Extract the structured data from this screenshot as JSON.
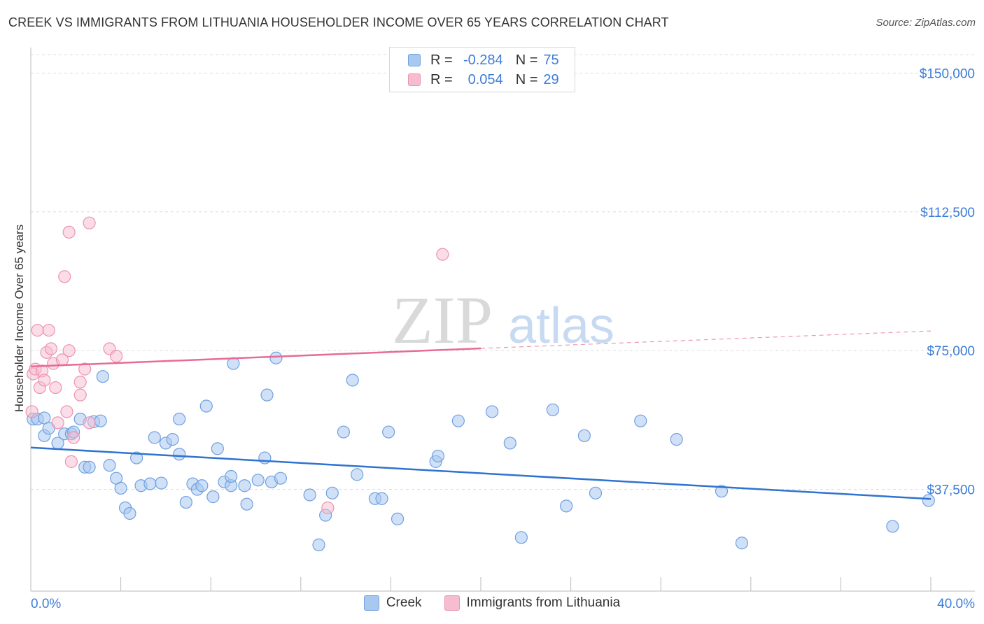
{
  "title": "CREEK VS IMMIGRANTS FROM LITHUANIA HOUSEHOLDER INCOME OVER 65 YEARS CORRELATION CHART",
  "source": "Source: ZipAtlas.com",
  "watermark": {
    "zip": "ZIP",
    "atlas": "atlas"
  },
  "legend": {
    "r_label": "R =",
    "n_label": "N =",
    "creek": {
      "r": "-0.284",
      "n": "75"
    },
    "lith": {
      "r": "0.054",
      "n": "29"
    }
  },
  "bottom_legend": {
    "creek": "Creek",
    "lith": "Immigrants from Lithuania"
  },
  "colors": {
    "creek_fill": "#a9c8f0",
    "creek_stroke": "#6fa0e0",
    "creek_line": "#2f73d0",
    "lith_fill": "#f6bcd0",
    "lith_stroke": "#ec93b1",
    "lith_line": "#e86b96",
    "axis_text": "#3d7dd8",
    "grid": "#dddddd"
  },
  "chart_data": {
    "type": "scatter",
    "title": "CREEK VS IMMIGRANTS FROM LITHUANIA HOUSEHOLDER INCOME OVER 65 YEARS CORRELATION CHART",
    "xlabel": "",
    "ylabel": "Householder Income Over 65 years",
    "xlim": [
      0,
      40
    ],
    "ylim": [
      10000,
      155000
    ],
    "x_tick_labels": [
      "0.0%",
      "40.0%"
    ],
    "y_ticks": [
      37500,
      75000,
      112500,
      150000
    ],
    "y_tick_labels": [
      "$37,500",
      "$75,000",
      "$112,500",
      "$150,000"
    ],
    "grid": true,
    "legend_position": "top-center",
    "series": [
      {
        "name": "Creek",
        "r": -0.284,
        "n": 75,
        "trend": [
          [
            0,
            48800
          ],
          [
            40,
            34900
          ]
        ],
        "points": [
          [
            0.1,
            56500
          ],
          [
            0.3,
            56500
          ],
          [
            0.6,
            52000
          ],
          [
            0.6,
            56800
          ],
          [
            0.8,
            54000
          ],
          [
            1.2,
            50000
          ],
          [
            1.5,
            52500
          ],
          [
            1.8,
            52500
          ],
          [
            1.9,
            53000
          ],
          [
            2.2,
            56500
          ],
          [
            2.4,
            43500
          ],
          [
            2.6,
            43500
          ],
          [
            2.8,
            55800
          ],
          [
            3.1,
            56000
          ],
          [
            3.2,
            68000
          ],
          [
            3.5,
            44000
          ],
          [
            3.8,
            40500
          ],
          [
            4.0,
            37800
          ],
          [
            4.2,
            32500
          ],
          [
            4.4,
            31000
          ],
          [
            4.7,
            46000
          ],
          [
            4.9,
            38500
          ],
          [
            5.3,
            39000
          ],
          [
            5.5,
            51500
          ],
          [
            5.8,
            39200
          ],
          [
            6.0,
            50000
          ],
          [
            6.3,
            51000
          ],
          [
            6.6,
            56500
          ],
          [
            6.6,
            47000
          ],
          [
            6.9,
            34000
          ],
          [
            7.2,
            39000
          ],
          [
            7.4,
            37500
          ],
          [
            7.6,
            38500
          ],
          [
            7.8,
            60000
          ],
          [
            8.1,
            35500
          ],
          [
            8.3,
            48500
          ],
          [
            8.6,
            39500
          ],
          [
            8.9,
            38500
          ],
          [
            8.9,
            41000
          ],
          [
            9.0,
            71500
          ],
          [
            9.5,
            38500
          ],
          [
            9.6,
            33500
          ],
          [
            10.1,
            40000
          ],
          [
            10.4,
            46000
          ],
          [
            10.5,
            63000
          ],
          [
            10.7,
            39500
          ],
          [
            10.9,
            73000
          ],
          [
            11.1,
            40500
          ],
          [
            12.4,
            36000
          ],
          [
            12.8,
            22500
          ],
          [
            13.1,
            30500
          ],
          [
            13.4,
            36500
          ],
          [
            13.9,
            53000
          ],
          [
            14.3,
            67000
          ],
          [
            14.5,
            41500
          ],
          [
            15.3,
            35000
          ],
          [
            15.6,
            35000
          ],
          [
            15.9,
            53000
          ],
          [
            16.3,
            29500
          ],
          [
            18.0,
            45000
          ],
          [
            18.1,
            46500
          ],
          [
            19.0,
            56000
          ],
          [
            20.5,
            58500
          ],
          [
            21.3,
            50000
          ],
          [
            21.8,
            24500
          ],
          [
            23.2,
            59000
          ],
          [
            23.8,
            33000
          ],
          [
            24.6,
            52000
          ],
          [
            25.1,
            36500
          ],
          [
            27.1,
            56000
          ],
          [
            28.7,
            51000
          ],
          [
            30.7,
            37000
          ],
          [
            31.6,
            23000
          ],
          [
            38.3,
            27500
          ],
          [
            39.9,
            34500
          ]
        ]
      },
      {
        "name": "Immigrants from Lithuania",
        "r": 0.054,
        "n": 29,
        "trend": [
          [
            0,
            70700
          ],
          [
            20.0,
            75600
          ]
        ],
        "trend_extension": [
          [
            20.0,
            75600
          ],
          [
            40.0,
            80300
          ]
        ],
        "points": [
          [
            0.1,
            68700
          ],
          [
            0.2,
            70000
          ],
          [
            0.3,
            80500
          ],
          [
            0.4,
            65000
          ],
          [
            0.5,
            69500
          ],
          [
            0.6,
            67000
          ],
          [
            0.7,
            74500
          ],
          [
            0.8,
            80500
          ],
          [
            0.9,
            75500
          ],
          [
            1.0,
            71500
          ],
          [
            1.1,
            65000
          ],
          [
            1.2,
            55500
          ],
          [
            1.4,
            72500
          ],
          [
            1.5,
            95000
          ],
          [
            1.6,
            58500
          ],
          [
            1.7,
            75000
          ],
          [
            1.7,
            107000
          ],
          [
            1.8,
            45000
          ],
          [
            1.9,
            51500
          ],
          [
            2.2,
            66500
          ],
          [
            2.2,
            63000
          ],
          [
            2.4,
            70000
          ],
          [
            2.6,
            109500
          ],
          [
            2.6,
            55500
          ],
          [
            3.5,
            75500
          ],
          [
            3.8,
            73500
          ],
          [
            13.2,
            32500
          ],
          [
            18.3,
            101000
          ],
          [
            0.05,
            58500
          ]
        ]
      }
    ]
  }
}
